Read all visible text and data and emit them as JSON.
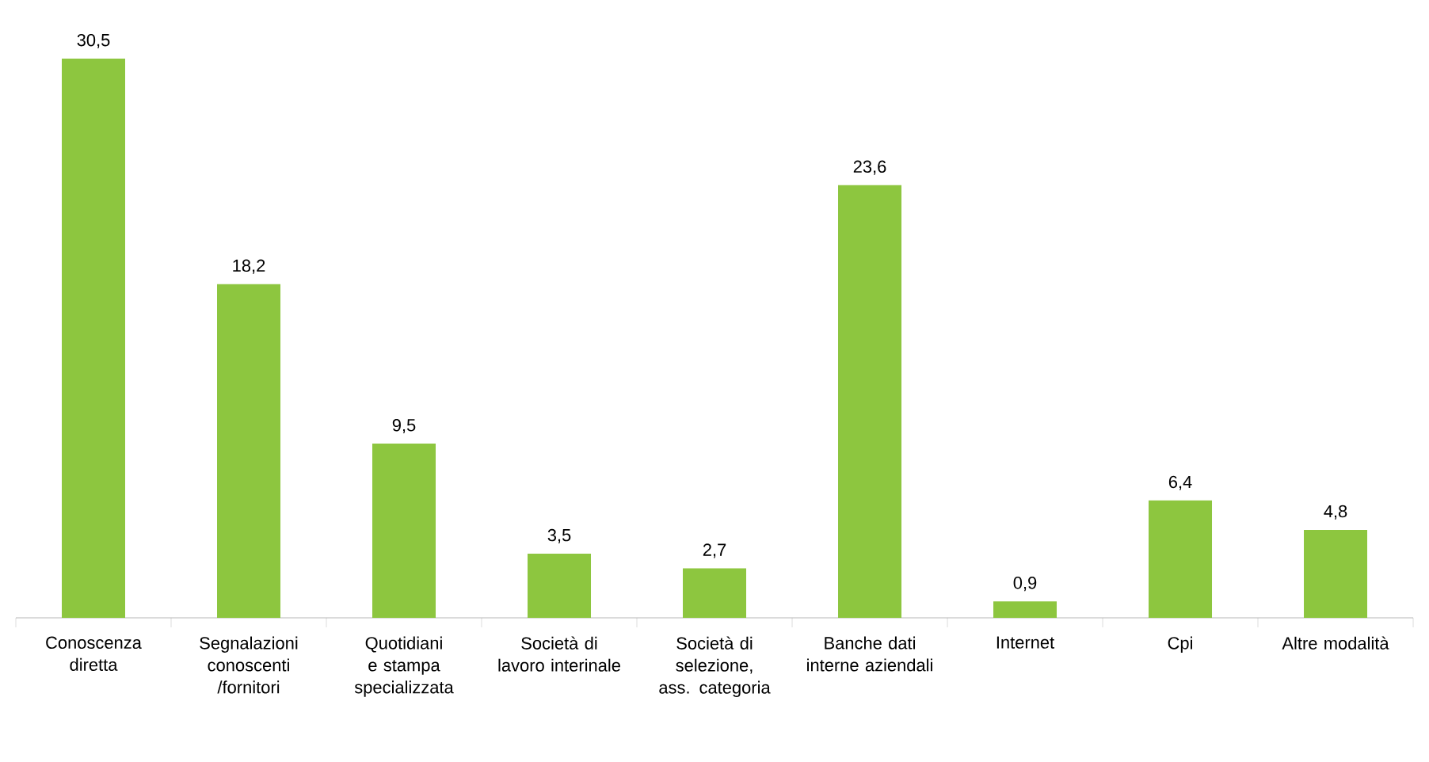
{
  "chart_data": {
    "type": "bar",
    "categories": [
      "Conoscenza diretta",
      "Segnalazioni conoscenti /fornitori",
      "Quotidiani e stampa specializzata",
      "Società di lavoro interinale",
      "Società di selezione, ass. categoria",
      "Banche dati interne aziendali",
      "Internet",
      "Cpi",
      "Altre modalità"
    ],
    "values": [
      30.5,
      18.2,
      9.5,
      3.5,
      2.7,
      23.6,
      0.9,
      6.4,
      4.8
    ],
    "value_labels": [
      "30,5",
      "18,2",
      "9,5",
      "3,5",
      "2,7",
      "23,6",
      "0,9",
      "6,4",
      "4,8"
    ],
    "color": "#8dc63f"
  }
}
